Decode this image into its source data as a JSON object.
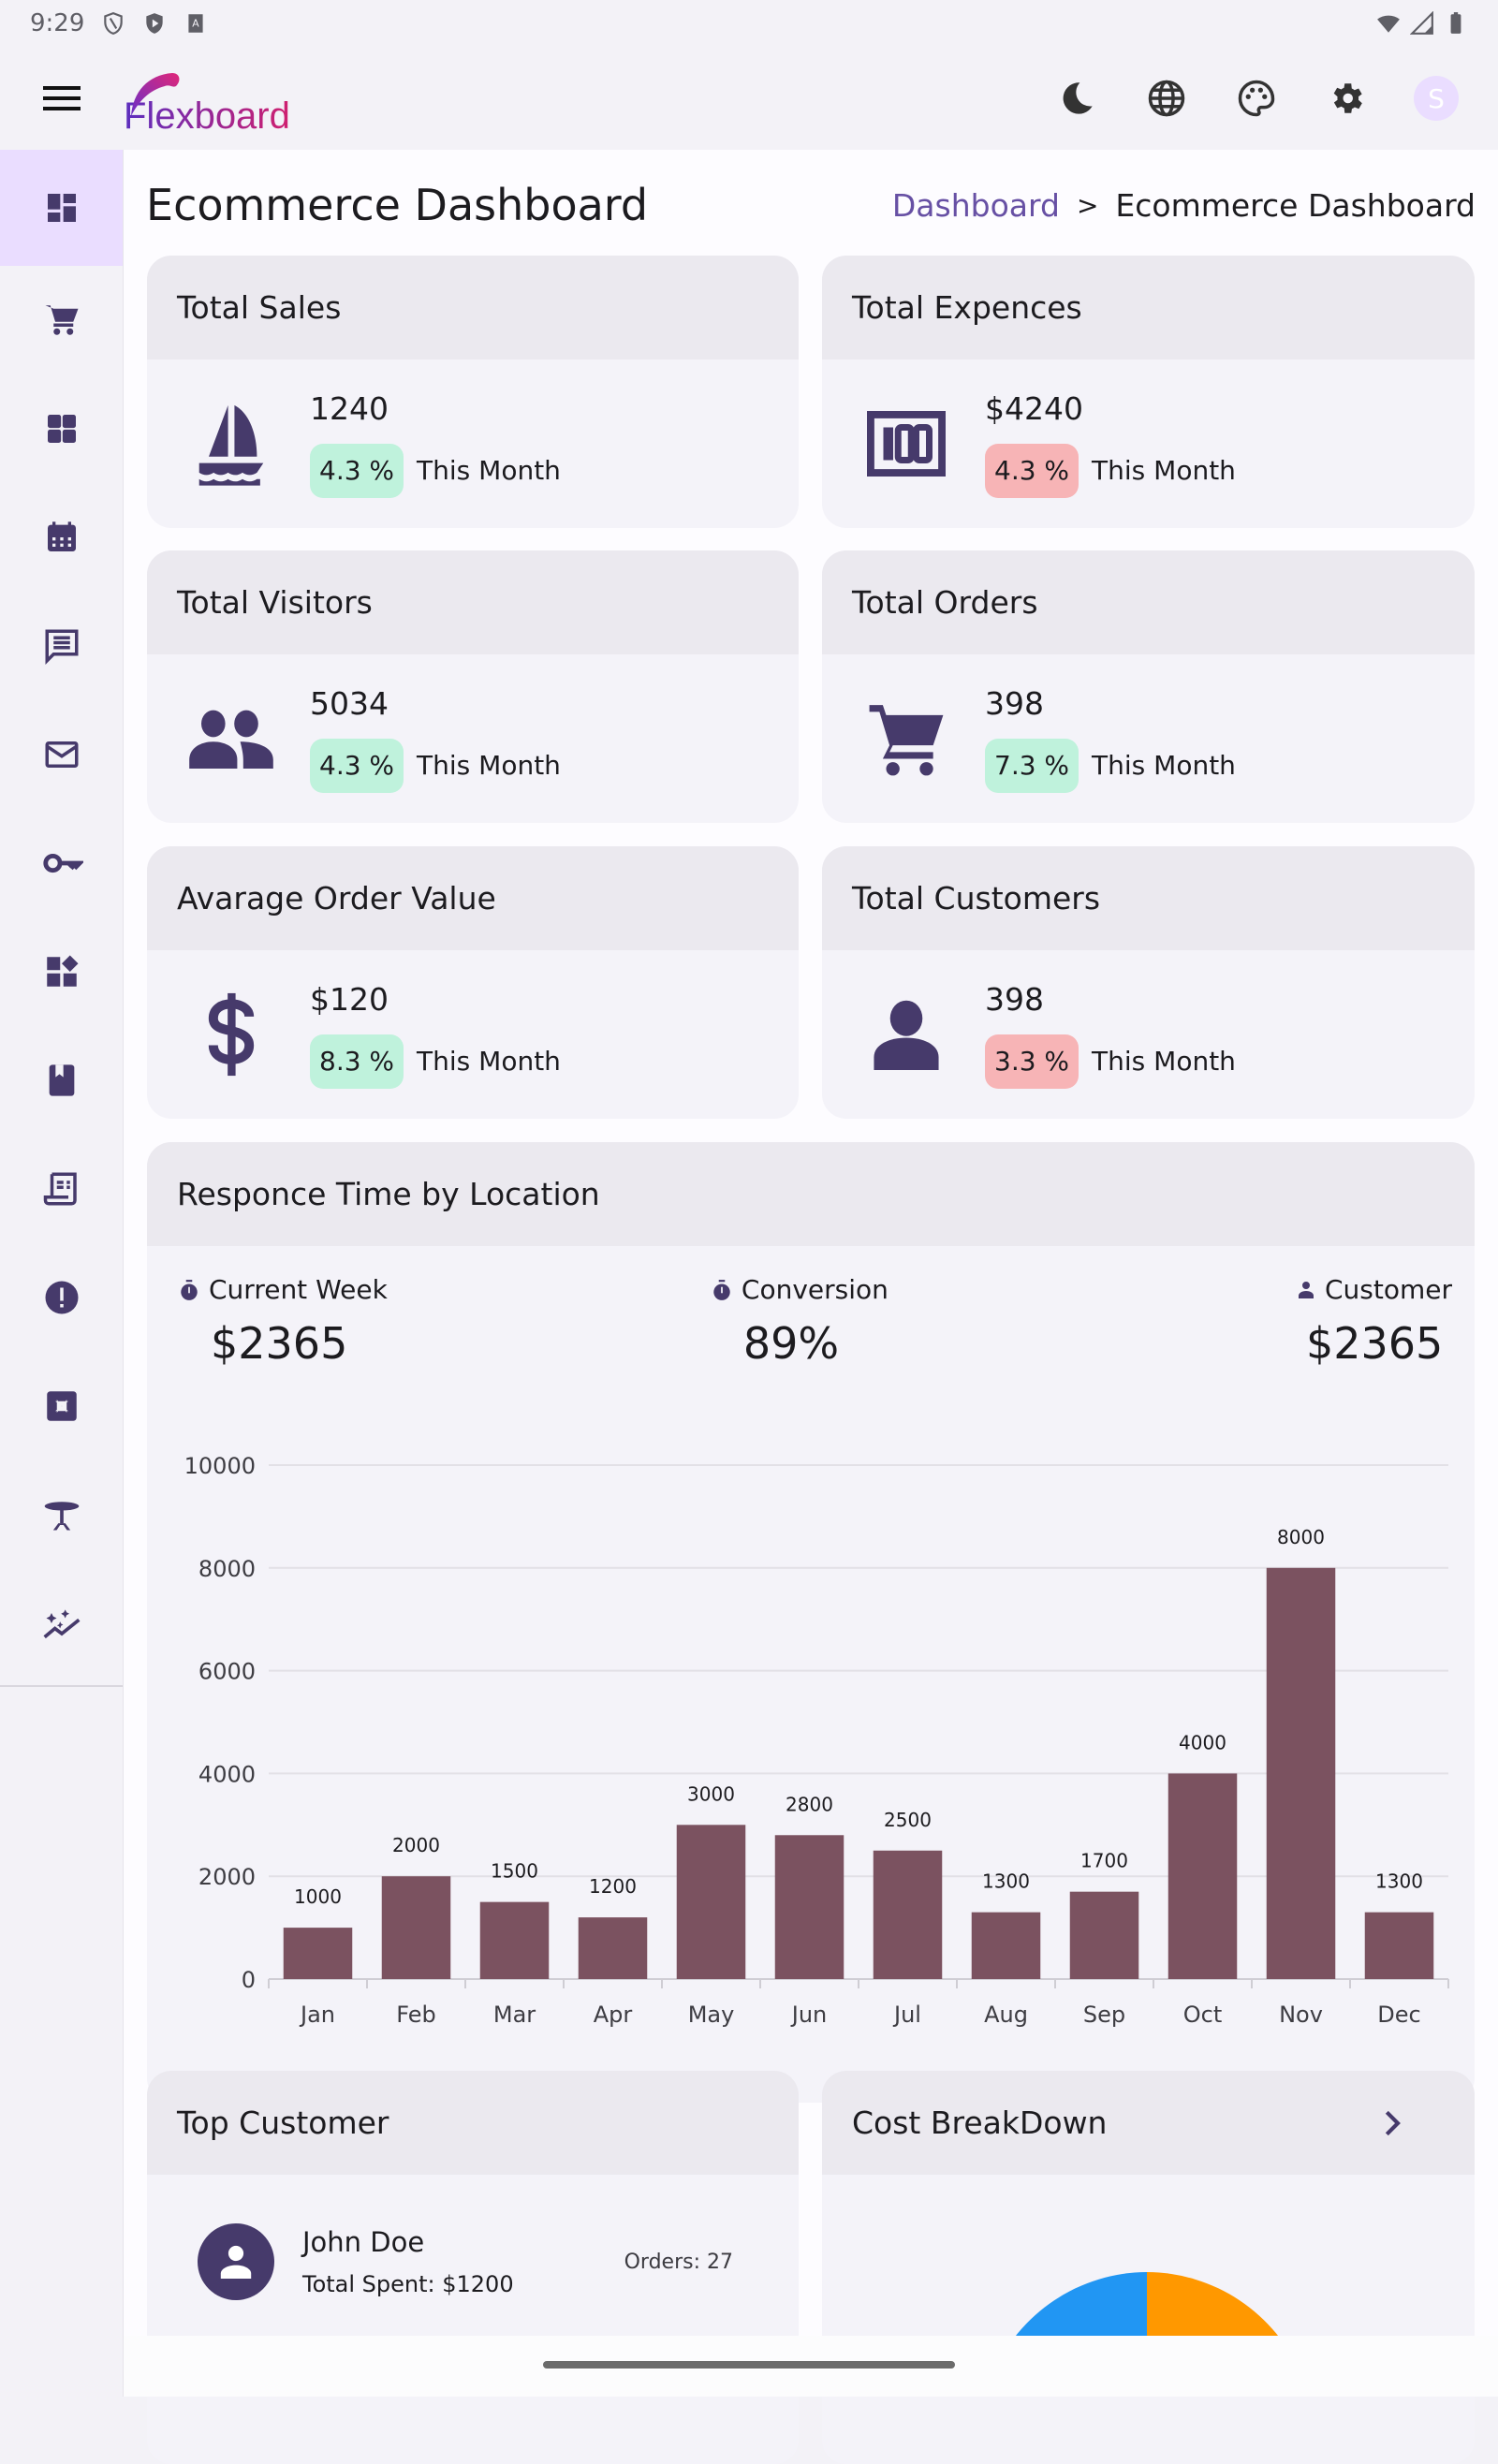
{
  "status_bar": {
    "time": "9:29"
  },
  "app": {
    "logo_text": "Flexboard",
    "avatar_initial": "S"
  },
  "page": {
    "title": "Ecommerce Dashboard",
    "breadcrumb": {
      "parent": "Dashboard",
      "separator": ">",
      "current": "Ecommerce Dashboard"
    }
  },
  "stats": [
    {
      "title": "Total Sales",
      "value": "1240",
      "change": "4.3 %",
      "trend": "up",
      "period": "This Month",
      "icon": "sailboat-icon"
    },
    {
      "title": "Total Expences",
      "value": "$4240",
      "change": "4.3 %",
      "trend": "down",
      "period": "This Month",
      "icon": "hundred-icon"
    },
    {
      "title": "Total Visitors",
      "value": "5034",
      "change": "4.3 %",
      "trend": "up",
      "period": "This Month",
      "icon": "people-icon"
    },
    {
      "title": "Total Orders",
      "value": "398",
      "change": "7.3 %",
      "trend": "up",
      "period": "This Month",
      "icon": "cart-icon"
    },
    {
      "title": "Avarage Order Value",
      "value": "$120",
      "change": "8.3 %",
      "trend": "up",
      "period": "This Month",
      "icon": "dollar-icon"
    },
    {
      "title": "Total Customers",
      "value": "398",
      "change": "3.3 %",
      "trend": "down",
      "period": "This Month",
      "icon": "person-icon"
    }
  ],
  "response_card": {
    "title": "Responce Time by Location",
    "metrics": [
      {
        "label": "Current Week",
        "value": "$2365",
        "icon": "timer-icon"
      },
      {
        "label": "Conversion",
        "value": "89%",
        "icon": "timer-icon"
      },
      {
        "label": "Customer",
        "value": "$2365",
        "icon": "person-icon"
      }
    ]
  },
  "chart_data": {
    "type": "bar",
    "title": "Responce Time by Location",
    "categories": [
      "Jan",
      "Feb",
      "Mar",
      "Apr",
      "May",
      "Jun",
      "Jul",
      "Aug",
      "Sep",
      "Oct",
      "Nov",
      "Dec"
    ],
    "values": [
      1000,
      2000,
      1500,
      1200,
      3000,
      2800,
      2500,
      1300,
      1700,
      4000,
      8000,
      1300
    ],
    "data_labels": [
      "1000",
      "2000",
      "1500",
      "1200",
      "3000",
      "2800",
      "2500",
      "1300",
      "1700",
      "4000",
      "8000",
      "1300"
    ],
    "yticks": [
      0,
      2000,
      4000,
      6000,
      8000,
      10000
    ],
    "ytick_labels": [
      "0",
      "2000",
      "4000",
      "6000",
      "8000",
      "10000"
    ],
    "ylim": [
      0,
      10000
    ],
    "xlabel": "",
    "ylabel": "",
    "grid": true,
    "bar_color": "#7b5260"
  },
  "top_customer": {
    "title": "Top Customer",
    "name": "John Doe",
    "spent": "Total Spent: $1200",
    "orders": "Orders: 27"
  },
  "cost_breakdown": {
    "title": "Cost BreakDown",
    "colors": [
      "#2196f3",
      "#ff9800"
    ]
  },
  "colors": {
    "accent": "#6750a4",
    "icon": "#463a6b",
    "up_badge": "#bff2dc",
    "down_badge": "#f7b4b6"
  }
}
